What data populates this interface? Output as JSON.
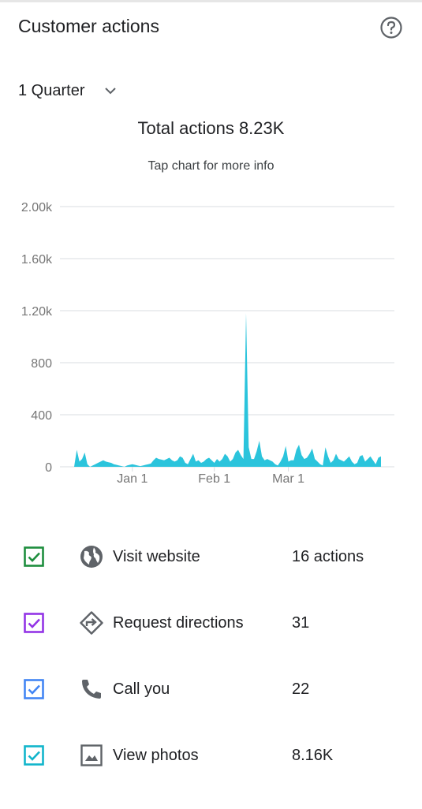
{
  "header": {
    "title": "Customer actions",
    "help_icon": "question-circle-icon"
  },
  "period": {
    "selected": "1 Quarter"
  },
  "summary": {
    "total": "Total actions 8.23K",
    "hint": "Tap chart for more info"
  },
  "chart_data": {
    "type": "area",
    "title": "",
    "xlabel": "",
    "ylabel": "",
    "ylim": [
      0,
      2000
    ],
    "yticks": [
      0,
      400,
      800,
      1200,
      1600,
      2000
    ],
    "ytick_labels": [
      "0",
      "400",
      "800",
      "1.20k",
      "1.60k",
      "2.00k"
    ],
    "xtick_labels": [
      "Jan 1",
      "Feb 1",
      "Mar 1"
    ],
    "x_start": "2018-12-10",
    "xtick_dates": [
      "2019-01-01",
      "2019-02-01",
      "2019-03-01"
    ],
    "grid": true,
    "color": "#2bc4dc",
    "values": [
      0,
      130,
      40,
      60,
      110,
      20,
      0,
      10,
      20,
      30,
      40,
      50,
      40,
      35,
      30,
      20,
      15,
      10,
      5,
      0,
      10,
      15,
      20,
      15,
      10,
      5,
      10,
      15,
      20,
      25,
      50,
      70,
      60,
      55,
      50,
      60,
      70,
      50,
      40,
      50,
      80,
      70,
      30,
      20,
      60,
      100,
      40,
      50,
      30,
      40,
      60,
      70,
      50,
      30,
      60,
      40,
      60,
      100,
      80,
      40,
      60,
      110,
      130,
      90,
      60,
      1180,
      150,
      60,
      60,
      120,
      200,
      80,
      50,
      60,
      50,
      40,
      20,
      10,
      40,
      80,
      160,
      40,
      50,
      50,
      130,
      170,
      90,
      60,
      70,
      100,
      140,
      60,
      40,
      20,
      10,
      150,
      80,
      30,
      50,
      100,
      60,
      50,
      40,
      60,
      80,
      40,
      20,
      30,
      80,
      90,
      40,
      60,
      80,
      50,
      20,
      70,
      80
    ],
    "series": [
      {
        "values": []
      }
    ]
  },
  "legend": {
    "items": [
      {
        "label": "Visit website",
        "value": "16 actions",
        "color": "#1e8e3e",
        "icon": "globe-icon"
      },
      {
        "label": "Request directions",
        "value": "31",
        "color": "#9334e6",
        "icon": "directions-icon"
      },
      {
        "label": "Call you",
        "value": "22",
        "color": "#4285f4",
        "icon": "phone-icon"
      },
      {
        "label": "View photos",
        "value": "8.16K",
        "color": "#12b5cb",
        "icon": "image-icon"
      }
    ]
  }
}
